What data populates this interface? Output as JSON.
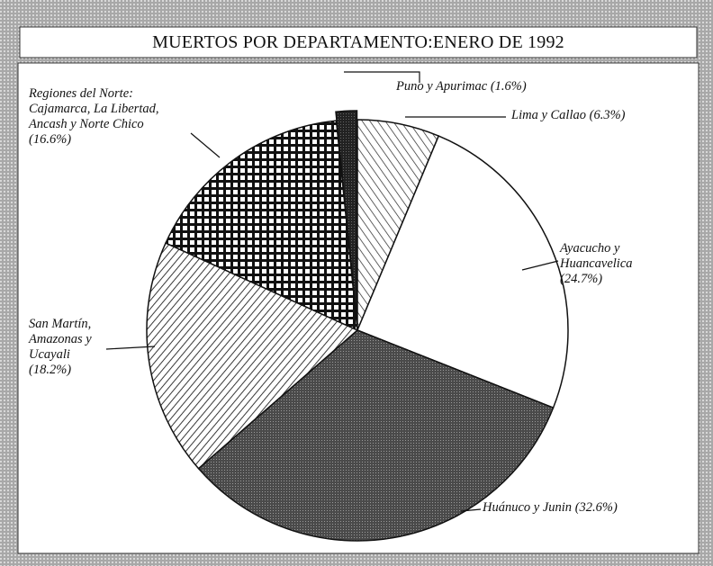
{
  "chart_data": {
    "type": "pie",
    "title": "MUERTOS POR DEPARTAMENTO:ENERO DE 1992",
    "categories": [
      "Lima y Callao",
      "Ayacucho y Huancavelica",
      "Huánuco y Junin",
      "San Martín, Amazonas y Ucayali",
      "Regiones del Norte: Cajamarca, La Libertad, Ancash y Norte Chico",
      "Puno y Apurimac"
    ],
    "values": [
      6.3,
      24.7,
      32.6,
      18.2,
      16.6,
      1.6
    ],
    "value_labels": [
      "(6.3%)",
      "(24.7%)",
      "(32.6%)",
      "(18.2%)",
      "(16.6%)",
      "(1.6%)"
    ],
    "colors": [
      "#ffffff",
      "#ffffff",
      "#5a5a5a",
      "#ffffff",
      "#ffffff",
      "#2a2a2a"
    ]
  }
}
